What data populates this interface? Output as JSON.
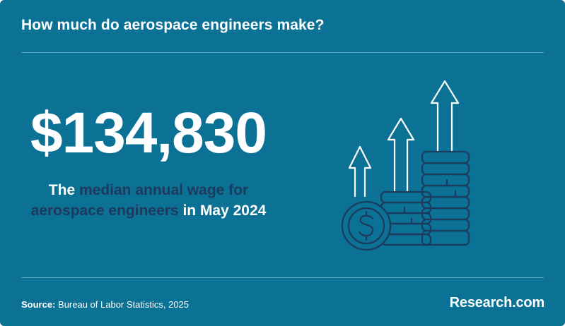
{
  "header": {
    "title": "How much do aerospace engineers make?"
  },
  "main": {
    "value": "$134,830",
    "description": {
      "part1": "The ",
      "highlight1": "median annual wage for aerospace engineers",
      "part2": " in May 2024"
    },
    "illustration_icon": "money-growth-icon"
  },
  "footer": {
    "source_label": "Source:",
    "source_text": " Bureau of Labor Statistics, 2025",
    "logo": "Research.com"
  },
  "colors": {
    "background": "#0b7296",
    "highlight_text": "#1d3a5c",
    "icon_stroke": "#1d3a5c",
    "arrow_stroke": "#ffffff"
  }
}
